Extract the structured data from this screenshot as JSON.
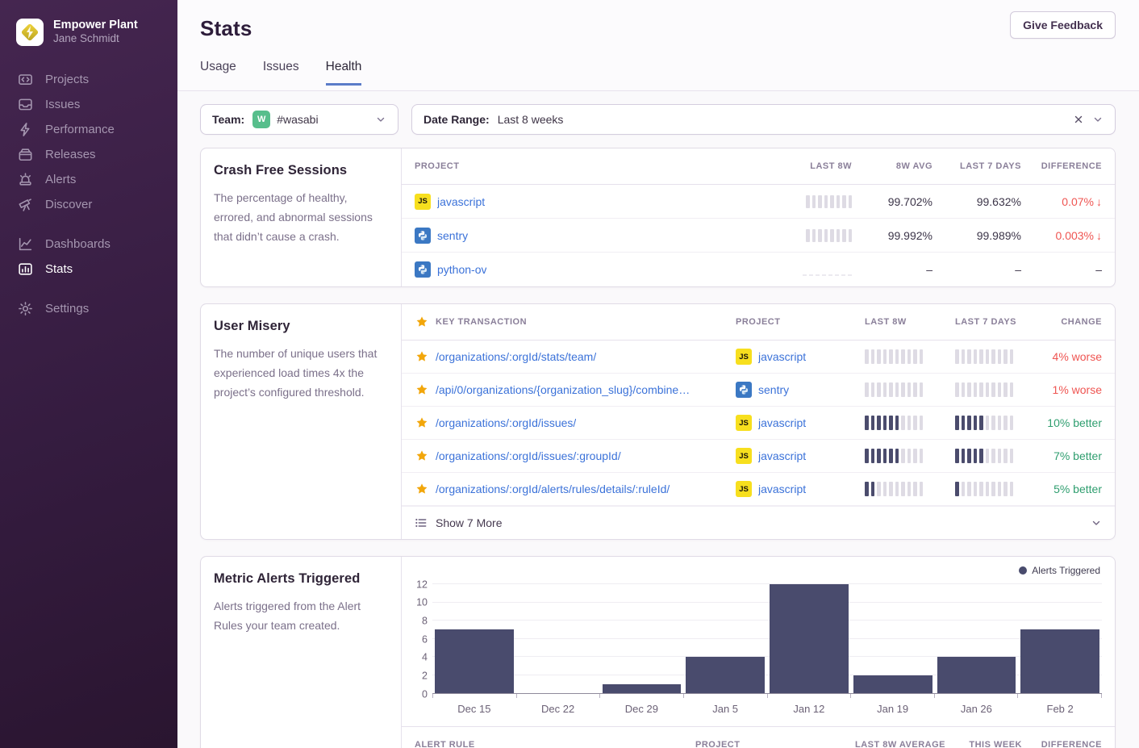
{
  "colors": {
    "accent_tab": "#5b7cc9",
    "link": "#3b72d9",
    "bar": "#494b6d",
    "negative": "#ef5552",
    "positive": "#2f9e6f",
    "star": "#f2a60a",
    "team_avatar": "#57be8c",
    "js_icon": "#f7df1e",
    "python_icon": "#3b78c3"
  },
  "sidebar": {
    "org_name": "Empower Plant",
    "user_name": "Jane Schmidt",
    "nav": [
      {
        "label": "Projects"
      },
      {
        "label": "Issues"
      },
      {
        "label": "Performance"
      },
      {
        "label": "Releases"
      },
      {
        "label": "Alerts"
      },
      {
        "label": "Discover"
      }
    ],
    "nav2": [
      {
        "label": "Dashboards"
      },
      {
        "label": "Stats"
      }
    ],
    "nav3": [
      {
        "label": "Settings"
      }
    ]
  },
  "header": {
    "title": "Stats",
    "feedback_button": "Give Feedback",
    "tabs": [
      {
        "label": "Usage"
      },
      {
        "label": "Issues"
      },
      {
        "label": "Health"
      }
    ]
  },
  "filters": {
    "team_label": "Team:",
    "team_avatar_letter": "W",
    "team_value": "#wasabi",
    "date_label": "Date Range:",
    "date_value": "Last 8 weeks"
  },
  "crash_free": {
    "title": "Crash Free Sessions",
    "description": "The percentage of healthy, errored, and abnormal sessions that didn’t cause a crash.",
    "columns": [
      "Project",
      "Last 8w",
      "8w Avg",
      "Last 7 Days",
      "Difference"
    ],
    "rows": [
      {
        "platform": "javascript",
        "project": "javascript",
        "spark": {
          "total": 8,
          "dark": 0
        },
        "avg_8w": "99.702%",
        "last_7d": "99.632%",
        "difference": "0.07%",
        "arrow": "↓",
        "direction": "down"
      },
      {
        "platform": "python",
        "project": "sentry",
        "spark": {
          "total": 8,
          "dark": 0
        },
        "avg_8w": "99.992%",
        "last_7d": "99.989%",
        "difference": "0.003%",
        "arrow": "↓",
        "direction": "down"
      },
      {
        "platform": "python",
        "project": "python-ov",
        "spark": {
          "total": 8,
          "dark": 0,
          "variant": "dashed"
        },
        "avg_8w": "–",
        "last_7d": "–",
        "difference": "–",
        "arrow": "",
        "direction": "none-diff"
      }
    ]
  },
  "user_misery": {
    "title": "User Misery",
    "description": "The number of unique users that experienced load times 4x the project’s configured threshold.",
    "columns": [
      "Key Transaction",
      "Project",
      "Last 8w",
      "Last 7 Days",
      "Change"
    ],
    "rows": [
      {
        "transaction": "/organizations/:orgId/stats/team/",
        "platform": "javascript",
        "project": "javascript",
        "spark_8w": {
          "total": 10,
          "dark": 0
        },
        "spark_7d": {
          "total": 10,
          "dark": 0
        },
        "change": "4% worse",
        "direction": "worse"
      },
      {
        "transaction": "/api/0/organizations/{organization_slug}/combine…",
        "platform": "python",
        "project": "sentry",
        "spark_8w": {
          "total": 10,
          "dark": 0
        },
        "spark_7d": {
          "total": 10,
          "dark": 0
        },
        "change": "1% worse",
        "direction": "worse"
      },
      {
        "transaction": "/organizations/:orgId/issues/",
        "platform": "javascript",
        "project": "javascript",
        "spark_8w": {
          "total": 10,
          "dark": 6
        },
        "spark_7d": {
          "total": 10,
          "dark": 5
        },
        "change": "10% better",
        "direction": "better"
      },
      {
        "transaction": "/organizations/:orgId/issues/:groupId/",
        "platform": "javascript",
        "project": "javascript",
        "spark_8w": {
          "total": 10,
          "dark": 6
        },
        "spark_7d": {
          "total": 10,
          "dark": 5
        },
        "change": "7% better",
        "direction": "better"
      },
      {
        "transaction": "/organizations/:orgId/alerts/rules/details/:ruleId/",
        "platform": "javascript",
        "project": "javascript",
        "spark_8w": {
          "total": 10,
          "dark": 2
        },
        "spark_7d": {
          "total": 10,
          "dark": 1
        },
        "change": "5% better",
        "direction": "better"
      }
    ],
    "show_more": "Show 7 More"
  },
  "metric_alerts": {
    "title": "Metric Alerts Triggered",
    "description": "Alerts triggered from the Alert Rules your team created.",
    "legend": "Alerts Triggered",
    "table_columns": [
      "Alert Rule",
      "Project",
      "Last 8w Average",
      "This Week",
      "Difference"
    ]
  },
  "chart_data": {
    "type": "bar",
    "title": "Metric Alerts Triggered",
    "categories": [
      "Dec 15",
      "Dec 22",
      "Dec 29",
      "Jan 5",
      "Jan 12",
      "Jan 19",
      "Jan 26",
      "Feb 2"
    ],
    "values": [
      7,
      0,
      1,
      4,
      12,
      2,
      4,
      7
    ],
    "series_name": "Alerts Triggered",
    "xlabel": "",
    "ylabel": "",
    "yticks": [
      0,
      2,
      4,
      6,
      8,
      10,
      12
    ],
    "ylim": [
      0,
      12
    ],
    "grid": true,
    "legend_position": "top-right"
  }
}
